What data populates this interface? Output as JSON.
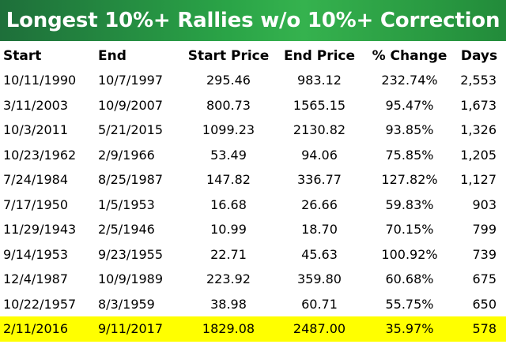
{
  "title": "Longest 10%+ Rallies w/o 10%+ Correction",
  "colors": {
    "banner": "#2aa447",
    "highlight": "#ffff00"
  },
  "chart_data": {
    "type": "table",
    "title": "Longest 10%+ Rallies w/o 10%+ Correction",
    "columns": [
      "Start",
      "End",
      "Start Price",
      "End Price",
      "% Change",
      "Days"
    ],
    "rows": [
      [
        "10/11/1990",
        "10/7/1997",
        "295.46",
        "983.12",
        "232.74%",
        "2,553"
      ],
      [
        "3/11/2003",
        "10/9/2007",
        "800.73",
        "1565.15",
        "95.47%",
        "1,673"
      ],
      [
        "10/3/2011",
        "5/21/2015",
        "1099.23",
        "2130.82",
        "93.85%",
        "1,326"
      ],
      [
        "10/23/1962",
        "2/9/1966",
        "53.49",
        "94.06",
        "75.85%",
        "1,205"
      ],
      [
        "7/24/1984",
        "8/25/1987",
        "147.82",
        "336.77",
        "127.82%",
        "1,127"
      ],
      [
        "7/17/1950",
        "1/5/1953",
        "16.68",
        "26.66",
        "59.83%",
        "903"
      ],
      [
        "11/29/1943",
        "2/5/1946",
        "10.99",
        "18.70",
        "70.15%",
        "799"
      ],
      [
        "9/14/1953",
        "9/23/1955",
        "22.71",
        "45.63",
        "100.92%",
        "739"
      ],
      [
        "12/4/1987",
        "10/9/1989",
        "223.92",
        "359.80",
        "60.68%",
        "675"
      ],
      [
        "10/22/1957",
        "8/3/1959",
        "38.98",
        "60.71",
        "55.75%",
        "650"
      ],
      [
        "2/11/2016",
        "9/11/2017",
        "1829.08",
        "2487.00",
        "35.97%",
        "578"
      ]
    ],
    "highlighted_row_index": 10
  }
}
